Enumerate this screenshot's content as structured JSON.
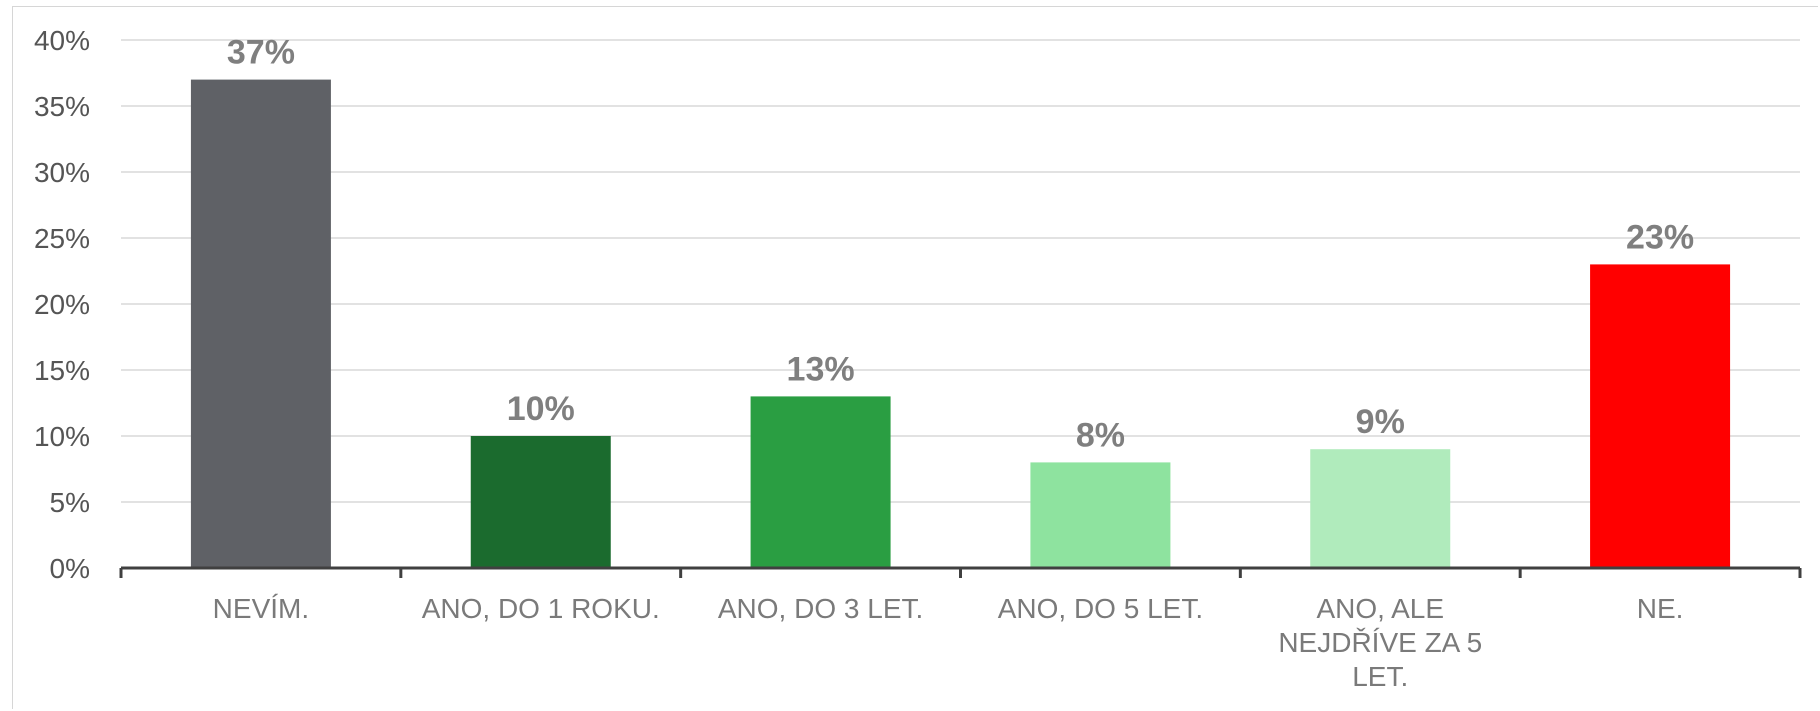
{
  "chart_data": {
    "type": "bar",
    "categories": [
      [
        "NEVÍM."
      ],
      [
        "ANO, DO 1 ROKU."
      ],
      [
        "ANO, DO 3 LET."
      ],
      [
        "ANO, DO 5 LET."
      ],
      [
        "ANO, ALE",
        "NEJDŘÍVE ZA 5",
        "LET."
      ],
      [
        "NE."
      ]
    ],
    "values": [
      37,
      10,
      13,
      8,
      9,
      23
    ],
    "data_labels": [
      "37%",
      "10%",
      "13%",
      "8%",
      "9%",
      "23%"
    ],
    "colors": [
      "#5f6166",
      "#1b6b2e",
      "#2a9e42",
      "#8ee39f",
      "#b0ebbc",
      "#ff0000"
    ],
    "yticks": [
      "0%",
      "5%",
      "10%",
      "15%",
      "20%",
      "25%",
      "30%",
      "35%",
      "40%"
    ],
    "ylim": [
      0,
      40
    ],
    "grid": true,
    "legend": "none"
  }
}
